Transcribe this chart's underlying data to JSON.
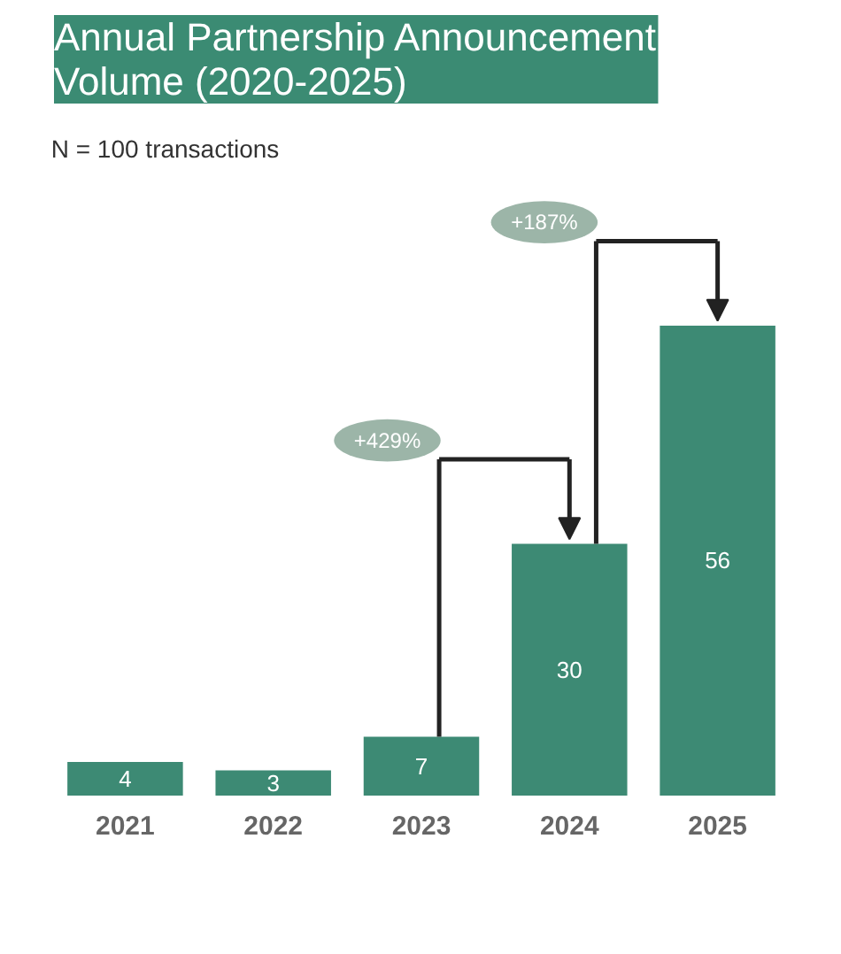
{
  "chart_data": {
    "type": "bar",
    "title": "Annual Partnership Announcement\nVolume (2020-2025)",
    "categories": [
      "2021",
      "2022",
      "2023",
      "2024",
      "2025"
    ],
    "values": [
      4,
      3,
      7,
      30,
      56
    ],
    "color": "#3d8a74",
    "data_labels": true,
    "grid": false,
    "annotations": [
      "N = 100 transactions",
      "+429%",
      "+187%"
    ]
  }
}
